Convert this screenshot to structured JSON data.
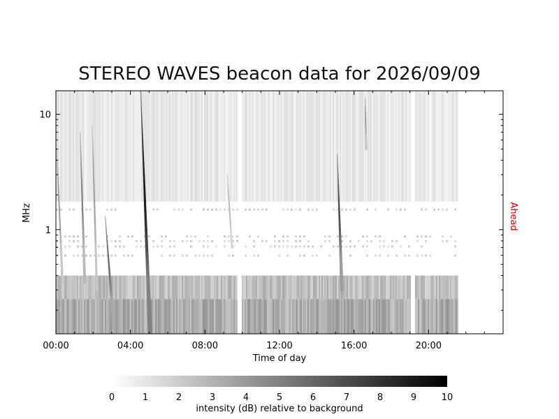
{
  "chart_data": {
    "type": "heatmap",
    "title": "STEREO WAVES beacon data for 2026/09/09",
    "xlabel": "Time of day",
    "ylabel": "MHz",
    "right_label": "Ahead",
    "x_ticks": [
      "00:00",
      "04:00",
      "08:00",
      "12:00",
      "16:00",
      "20:00"
    ],
    "x_range_hours": [
      0,
      24
    ],
    "y_scale": "log",
    "y_range_mhz": [
      0.125,
      16
    ],
    "y_ticks": [
      "1",
      "10"
    ],
    "data_coverage_hours": [
      0,
      21.6
    ],
    "data_gaps_hours": [
      [
        9.75,
        9.95
      ],
      [
        19.0,
        19.25
      ]
    ],
    "bursts": [
      {
        "start_hour": 0.05,
        "end_hour": 0.35,
        "f_high_mhz": 5.0,
        "f_low_mhz": 0.35,
        "intensity_db": 4
      },
      {
        "start_hour": 1.3,
        "end_hour": 1.55,
        "f_high_mhz": 7.0,
        "f_low_mhz": 0.35,
        "intensity_db": 5
      },
      {
        "start_hour": 1.95,
        "end_hour": 2.2,
        "f_high_mhz": 8.0,
        "f_low_mhz": 0.3,
        "intensity_db": 4
      },
      {
        "start_hour": 2.65,
        "end_hour": 3.1,
        "f_high_mhz": 1.3,
        "f_low_mhz": 0.14,
        "intensity_db": 6
      },
      {
        "start_hour": 4.55,
        "end_hour": 5.05,
        "f_high_mhz": 16,
        "f_low_mhz": 0.13,
        "intensity_db": 9
      },
      {
        "start_hour": 9.2,
        "end_hour": 9.45,
        "f_high_mhz": 3.0,
        "f_low_mhz": 0.7,
        "intensity_db": 3
      },
      {
        "start_hour": 15.1,
        "end_hour": 15.35,
        "f_high_mhz": 4.5,
        "f_low_mhz": 0.3,
        "intensity_db": 7
      },
      {
        "start_hour": 16.6,
        "end_hour": 16.65,
        "f_high_mhz": 14,
        "f_low_mhz": 5.0,
        "intensity_db": 4
      }
    ],
    "colorbar": {
      "label": "intensity (dB) relative to background",
      "ticks": [
        "0",
        "1",
        "2",
        "3",
        "4",
        "5",
        "6",
        "7",
        "8",
        "9",
        "10"
      ],
      "range_db": [
        0,
        10
      ],
      "colors": [
        "#ffffff",
        "#000000"
      ]
    },
    "colors": {
      "ahead": "#cc0000",
      "axis": "#000000"
    }
  }
}
